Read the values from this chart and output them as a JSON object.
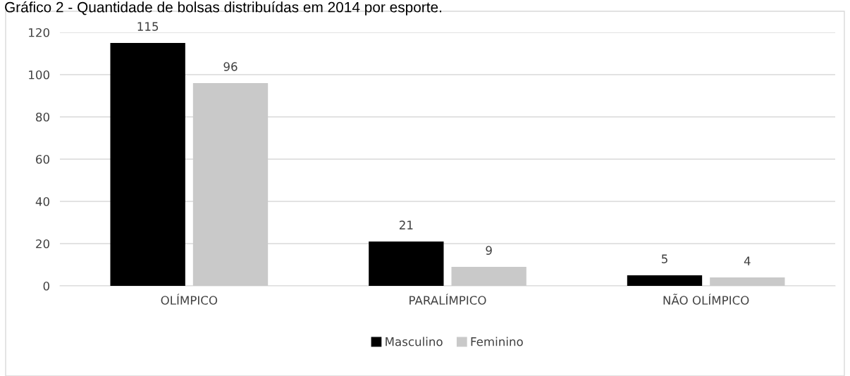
{
  "chart_data": {
    "type": "bar",
    "title": "Gráfico 2 - Quantidade de bolsas distribuídas em 2014 por esporte.",
    "categories": [
      "OLÍMPICO",
      "PARALÍMPICO",
      "NÃO OLÍMPICO"
    ],
    "series": [
      {
        "name": "Masculino",
        "color": "#000000",
        "values": [
          115,
          21,
          5
        ]
      },
      {
        "name": "Feminino",
        "color": "#c9c9c9",
        "values": [
          96,
          9,
          4
        ]
      }
    ],
    "ylim": [
      0,
      120
    ],
    "yticks": [
      0,
      20,
      40,
      60,
      80,
      100,
      120
    ],
    "grid": "y",
    "legend": "bottom",
    "data_labels": true
  }
}
